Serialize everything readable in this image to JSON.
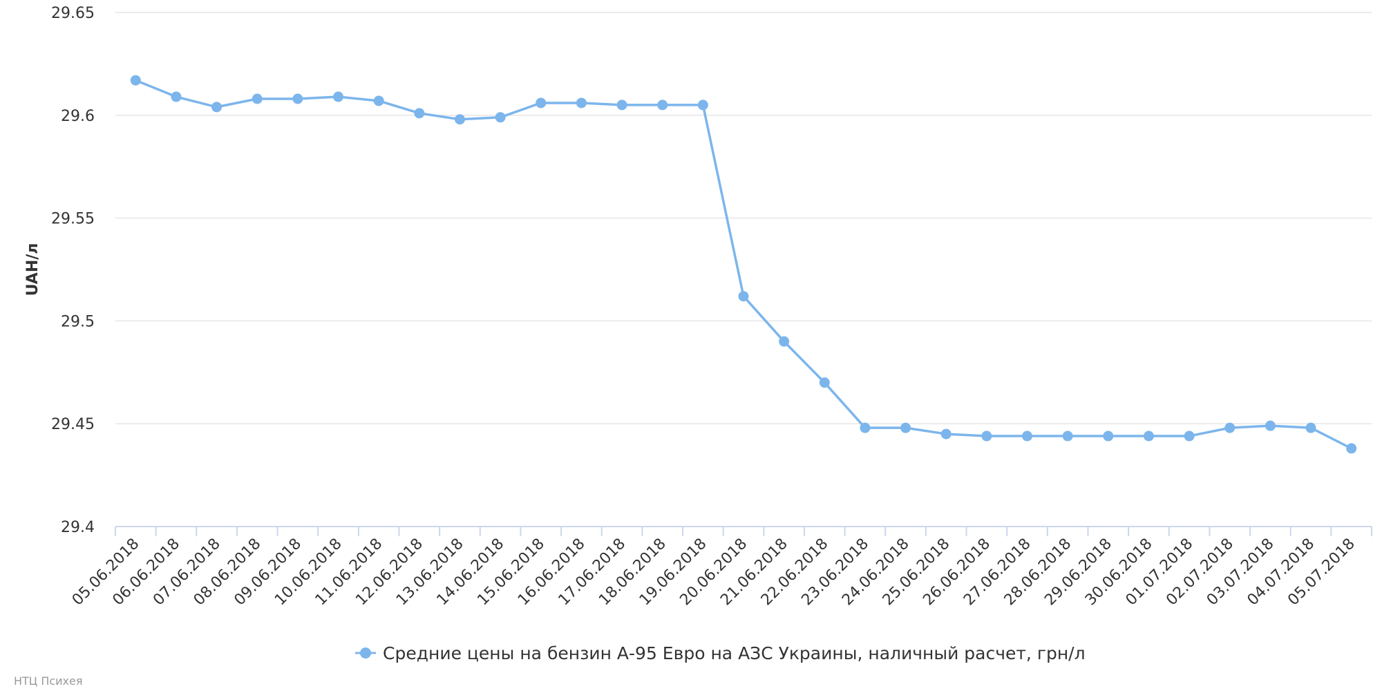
{
  "chart_data": {
    "type": "line",
    "ylabel": "UAH/л",
    "ylim": [
      29.4,
      29.65
    ],
    "yticks": [
      "29.4",
      "29.45",
      "29.5",
      "29.55",
      "29.6",
      "29.65"
    ],
    "grid": true,
    "legend_position": "bottom-center",
    "categories": [
      "05.06.2018",
      "06.06.2018",
      "07.06.2018",
      "08.06.2018",
      "09.06.2018",
      "10.06.2018",
      "11.06.2018",
      "12.06.2018",
      "13.06.2018",
      "14.06.2018",
      "15.06.2018",
      "16.06.2018",
      "17.06.2018",
      "18.06.2018",
      "19.06.2018",
      "20.06.2018",
      "21.06.2018",
      "22.06.2018",
      "23.06.2018",
      "24.06.2018",
      "25.06.2018",
      "26.06.2018",
      "27.06.2018",
      "28.06.2018",
      "29.06.2018",
      "30.06.2018",
      "01.07.2018",
      "02.07.2018",
      "03.07.2018",
      "04.07.2018",
      "05.07.2018"
    ],
    "series": [
      {
        "name": "Средние цены на бензин А-95 Евро на АЗС Украины, наличный расчет, грн/л",
        "color": "#7cb5ec",
        "values": [
          29.617,
          29.609,
          29.604,
          29.608,
          29.608,
          29.609,
          29.607,
          29.601,
          29.598,
          29.599,
          29.606,
          29.606,
          29.605,
          29.605,
          29.605,
          29.512,
          29.49,
          29.47,
          29.448,
          29.448,
          29.445,
          29.444,
          29.444,
          29.444,
          29.444,
          29.444,
          29.444,
          29.448,
          29.449,
          29.448,
          29.438
        ]
      }
    ]
  },
  "credits": "НТЦ Психея",
  "colors": {
    "grid": "#e6e6e6",
    "axis": "#ccd6eb",
    "text": "#333333",
    "credits": "#999999"
  }
}
